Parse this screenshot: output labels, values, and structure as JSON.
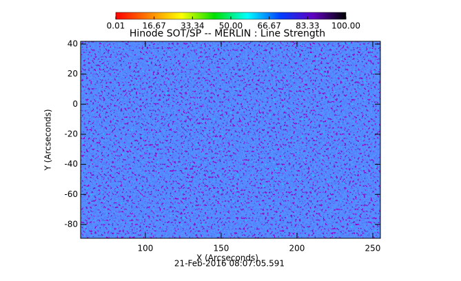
{
  "chart_data": {
    "type": "image-map",
    "title": "Hinode SOT/SP -- MERLIN : Line Strength",
    "x_label": "X (Arcseconds)",
    "y_label": "Y (Arcseconds)",
    "timestamp": "21-Feb-2016 08:07:05.591",
    "xlim": [
      57.3,
      255
    ],
    "ylim": [
      -89.2,
      41.8
    ],
    "xticks": [
      100,
      150,
      200,
      250
    ],
    "yticks": [
      -80,
      -60,
      -40,
      -20,
      0,
      20,
      40
    ],
    "colorbar": {
      "lim": [
        0.01,
        100
      ],
      "ticks": [
        0.01,
        16.67,
        33.34,
        {
          "value": 50,
          "label": "50.00"
        },
        66.67,
        83.33,
        {
          "value": 100,
          "label": "100.00"
        }
      ],
      "colormap": [
        "#ff0000",
        "#ff8000",
        "#ffff00",
        "#00e000",
        "#00ffff",
        "#0040ff",
        "#6000c0",
        "#000000"
      ]
    }
  }
}
